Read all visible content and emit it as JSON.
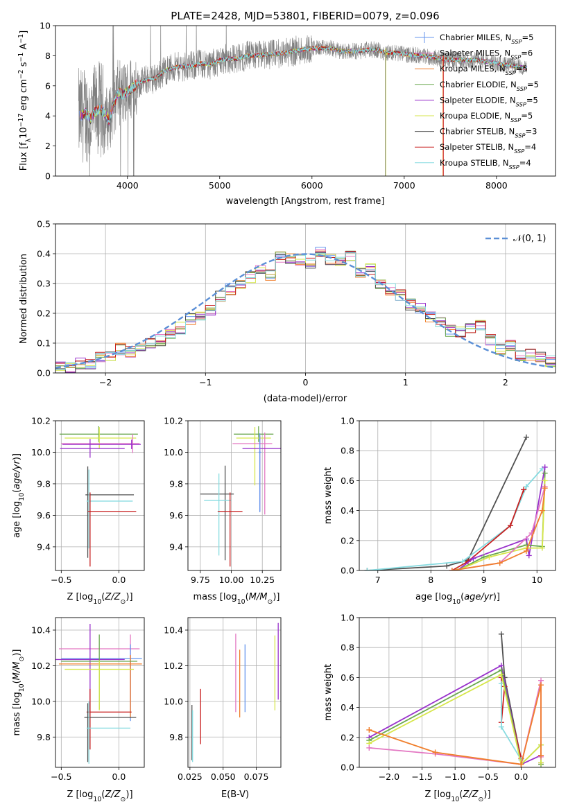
{
  "chart_data": [
    {
      "type": "line",
      "title": "PLATE=2428, MJD=53801, FIBERID=0079, z=0.096",
      "xlabel": "wavelength [Angstrom, rest frame]",
      "ylabel": "Flux [f_λ 10^-17 erg cm^-2 s^-1 A^-1]",
      "xlim": [
        3220,
        8640
      ],
      "ylim": [
        0,
        10
      ],
      "xticks": [
        4000,
        5000,
        6000,
        7000,
        8000
      ],
      "yticks": [
        0,
        2,
        4,
        6,
        8,
        10
      ],
      "grid": false,
      "legend_position": "right",
      "series": [
        {
          "name": "Chabrier MILES, N_SSP=5",
          "color": "#6495ed"
        },
        {
          "name": "Salpeter MILES, N_SSP=6",
          "color": "#e377c2"
        },
        {
          "name": "Kroupa MILES, N_SSP=5",
          "color": "#f07f2c"
        },
        {
          "name": "Chabrier ELODIE, N_SSP=5",
          "color": "#6aa84f"
        },
        {
          "name": "Salpeter ELODIE, N_SSP=5",
          "color": "#9932cc"
        },
        {
          "name": "Kroupa ELODIE, N_SSP=5",
          "color": "#d6e64a"
        },
        {
          "name": "Chabrier STELIB, N_SSP=3",
          "color": "#505050"
        },
        {
          "name": "Salpeter STELIB, N_SSP=4",
          "color": "#c81e1e"
        },
        {
          "name": "Kroupa STELIB, N_SSP=4",
          "color": "#87dbe0"
        }
      ],
      "observed_color": "#808080",
      "model_continuum": {
        "x": [
          3500,
          3550,
          3600,
          3650,
          3700,
          3750,
          3800,
          3850,
          3900,
          3950,
          4000,
          4100,
          4200,
          4300,
          4400,
          4500,
          4600,
          4700,
          4800,
          4900,
          5000,
          5100,
          5200,
          5300,
          5400,
          5500,
          5600,
          5700,
          5800,
          5900,
          6000,
          6100,
          6200,
          6300,
          6400,
          6500,
          6600,
          6700,
          6800,
          6900,
          7000,
          7200,
          7400,
          7600,
          7800,
          8000,
          8200,
          8300
        ],
        "y": [
          4.0,
          4.2,
          3.8,
          4.3,
          4.5,
          4.2,
          3.7,
          4.8,
          5.6,
          5.4,
          5.6,
          6.1,
          6.4,
          6.5,
          7.0,
          7.2,
          7.3,
          7.3,
          7.5,
          7.4,
          7.7,
          7.8,
          7.8,
          8.0,
          8.0,
          8.1,
          8.1,
          8.2,
          8.3,
          8.4,
          8.5,
          8.5,
          8.5,
          8.3,
          8.3,
          8.3,
          8.4,
          8.4,
          8.2,
          8.2,
          8.1,
          8.0,
          7.8,
          7.7,
          7.7,
          7.5,
          7.3,
          7.2
        ]
      }
    },
    {
      "type": "step",
      "xlabel": "(data-model)/error",
      "ylabel": "Normed distribution",
      "xlim": [
        -2.5,
        2.5
      ],
      "ylim": [
        0,
        0.5
      ],
      "xticks": [
        -2,
        -1,
        0,
        1,
        2
      ],
      "yticks": [
        0.0,
        0.1,
        0.2,
        0.3,
        0.4,
        0.5
      ],
      "grid": true,
      "legend_position": "top-right",
      "gaussian_label": "𝒩(0, 1)",
      "gaussian_color": "#5b8fd6",
      "bin_edges": [
        -2.5,
        -2.4,
        -2.3,
        -2.2,
        -2.1,
        -2.0,
        -1.9,
        -1.8,
        -1.7,
        -1.6,
        -1.5,
        -1.4,
        -1.3,
        -1.2,
        -1.1,
        -1.0,
        -0.9,
        -0.8,
        -0.7,
        -0.6,
        -0.5,
        -0.4,
        -0.3,
        -0.2,
        -0.1,
        0.0,
        0.1,
        0.2,
        0.3,
        0.4,
        0.5,
        0.6,
        0.7,
        0.8,
        0.9,
        1.0,
        1.1,
        1.2,
        1.3,
        1.4,
        1.5,
        1.6,
        1.7,
        1.8,
        1.9,
        2.0,
        2.1,
        2.2,
        2.3,
        2.4,
        2.5
      ],
      "base_histogram": [
        0.02,
        0.02,
        0.03,
        0.03,
        0.05,
        0.06,
        0.08,
        0.07,
        0.08,
        0.1,
        0.11,
        0.13,
        0.15,
        0.18,
        0.19,
        0.21,
        0.26,
        0.28,
        0.29,
        0.32,
        0.35,
        0.33,
        0.39,
        0.38,
        0.38,
        0.37,
        0.41,
        0.38,
        0.37,
        0.39,
        0.34,
        0.35,
        0.3,
        0.28,
        0.26,
        0.23,
        0.22,
        0.19,
        0.17,
        0.14,
        0.14,
        0.15,
        0.16,
        0.11,
        0.08,
        0.09,
        0.06,
        0.06,
        0.05,
        0.04
      ]
    },
    {
      "type": "errorbar",
      "xlabel": "Z [log10(Z/Z_⊙)]",
      "ylabel": "age  [log10(age/yr)]",
      "xlim": [
        -0.55,
        0.22
      ],
      "ylim": [
        9.25,
        10.2
      ],
      "xticks": [
        -0.5,
        0.0
      ],
      "yticks": [
        9.4,
        9.6,
        9.8,
        10.0,
        10.2
      ],
      "grid": true,
      "points": [
        {
          "x": -0.175,
          "xerr": [
            0.34,
            0.34
          ],
          "y": 10.115,
          "yerr": [
            0.05,
            0.05
          ],
          "color": "#6aa84f"
        },
        {
          "x": -0.17,
          "xerr": [
            0.3,
            0.32
          ],
          "y": 10.09,
          "yerr": [
            0.07,
            0.07
          ],
          "color": "#d6e64a"
        },
        {
          "x": 0.12,
          "xerr": [
            0.62,
            0.06
          ],
          "y": 10.055,
          "yerr": [
            0.06,
            0.06
          ],
          "color": "#e377c2"
        },
        {
          "x": 0.11,
          "xerr": [
            0.6,
            0.08
          ],
          "y": 10.05,
          "yerr": [
            0.03,
            0.03
          ],
          "color": "#9932cc"
        },
        {
          "x": -0.25,
          "xerr": [
            0.26,
            0.3
          ],
          "y": 10.025,
          "yerr": [
            0.06,
            0.06
          ],
          "color": "#9932cc"
        },
        {
          "x": -0.27,
          "xerr": [
            0.02,
            0.4
          ],
          "y": 9.73,
          "yerr": [
            0.4,
            0.18
          ],
          "color": "#505050"
        },
        {
          "x": -0.26,
          "xerr": [
            0.02,
            0.38
          ],
          "y": 9.69,
          "yerr": [
            0.3,
            0.2
          ],
          "color": "#87dbe0"
        },
        {
          "x": -0.25,
          "xerr": [
            0.02,
            0.4
          ],
          "y": 9.625,
          "yerr": [
            0.35,
            0.12
          ],
          "color": "#c81e1e"
        }
      ]
    },
    {
      "type": "errorbar",
      "xlabel": "mass [log10(M/M_⊙)]",
      "ylabel": "",
      "xlim": [
        9.65,
        10.4
      ],
      "ylim": [
        9.25,
        10.2
      ],
      "xticks": [
        9.75,
        10.0,
        10.25
      ],
      "tick_labels": [
        "9.75",
        "10.00",
        "10.25"
      ],
      "yticks": [
        9.4,
        9.6,
        9.8,
        10.0,
        10.2
      ],
      "grid": true,
      "points": [
        {
          "x": 10.22,
          "xerr": [
            0.2,
            0.12
          ],
          "y": 10.115,
          "yerr": [
            0.05,
            0.05
          ],
          "color": "#6aa84f"
        },
        {
          "x": 10.19,
          "xerr": [
            0.15,
            0.13
          ],
          "y": 10.09,
          "yerr": [
            0.3,
            0.07
          ],
          "color": "#d6e64a"
        },
        {
          "x": 10.27,
          "xerr": [
            0.26,
            0.06
          ],
          "y": 10.055,
          "yerr": [
            0.45,
            0.07
          ],
          "color": "#e377c2"
        },
        {
          "x": 10.23,
          "xerr": [
            0.14,
            0.17
          ],
          "y": 10.025,
          "yerr": [
            0.4,
            0.08
          ],
          "color": "#9932cc"
        },
        {
          "x": 9.95,
          "xerr": [
            0.2,
            0.07
          ],
          "y": 9.735,
          "yerr": [
            0.42,
            0.18
          ],
          "color": "#505050"
        },
        {
          "x": 9.9,
          "xerr": [
            0.12,
            0.1
          ],
          "y": 9.695,
          "yerr": [
            0.35,
            0.17
          ],
          "color": "#87dbe0"
        },
        {
          "x": 9.99,
          "xerr": [
            0.1,
            0.1
          ],
          "y": 9.625,
          "yerr": [
            0.35,
            0.12
          ],
          "color": "#c81e1e"
        },
        {
          "x": 10.23,
          "xerr": [
            0.01,
            0.01
          ],
          "y": 10.0,
          "yerr": [
            0.38,
            0.12
          ],
          "color": "#6495ed"
        }
      ]
    },
    {
      "type": "line",
      "xlabel": "age  [log10(age/yr)]",
      "ylabel": "mass weight",
      "xlim": [
        6.65,
        10.35
      ],
      "ylim": [
        0,
        1
      ],
      "xticks": [
        7,
        8,
        9,
        10
      ],
      "yticks": [
        0.0,
        0.2,
        0.4,
        0.6,
        0.8,
        1.0
      ],
      "grid": true,
      "series": [
        {
          "x": [
            6.8,
            8.3,
            8.7,
            9.8
          ],
          "y": [
            0.0,
            0.03,
            0.07,
            0.89
          ],
          "color": "#505050"
        },
        {
          "x": [
            6.8,
            8.6,
            9.5,
            9.8,
            10.1
          ],
          "y": [
            0.0,
            0.06,
            0.3,
            0.56,
            0.68
          ],
          "color": "#87dbe0"
        },
        {
          "x": [
            8.4,
            8.7,
            9.5,
            9.75
          ],
          "y": [
            0.0,
            0.06,
            0.3,
            0.54
          ],
          "color": "#c81e1e"
        },
        {
          "x": [
            8.5,
            8.8,
            9.8,
            9.85,
            10.15
          ],
          "y": [
            0.0,
            0.08,
            0.21,
            0.1,
            0.69
          ],
          "color": "#9932cc"
        },
        {
          "x": [
            8.5,
            9.0,
            9.8,
            10.1,
            10.15
          ],
          "y": [
            0.0,
            0.09,
            0.17,
            0.16,
            0.65
          ],
          "color": "#6aa84f"
        },
        {
          "x": [
            8.5,
            9.1,
            9.8,
            10.1,
            10.15
          ],
          "y": [
            0.0,
            0.09,
            0.15,
            0.15,
            0.6
          ],
          "color": "#d6e64a"
        },
        {
          "x": [
            8.4,
            9.3,
            9.9,
            10.15
          ],
          "y": [
            0.0,
            0.05,
            0.25,
            0.56
          ],
          "color": "#e377c2"
        },
        {
          "x": [
            8.4,
            9.3,
            9.8,
            10.1,
            10.15
          ],
          "y": [
            0.0,
            0.05,
            0.13,
            0.4,
            0.55
          ],
          "color": "#f07f2c"
        }
      ]
    },
    {
      "type": "errorbar",
      "xlabel": "Z [log10(Z/Z_⊙)]",
      "ylabel": "mass [log10(M/M_⊙)]",
      "xlim": [
        -0.55,
        0.22
      ],
      "ylim": [
        9.63,
        10.47
      ],
      "xticks": [
        -0.5,
        0.0
      ],
      "yticks": [
        9.8,
        10.0,
        10.2,
        10.4
      ],
      "grid": true,
      "points": [
        {
          "x": 0.1,
          "xerr": [
            0.62,
            0.08
          ],
          "y": 10.295,
          "yerr": [
            0.35,
            0.08
          ],
          "color": "#e377c2"
        },
        {
          "x": 0.1,
          "xerr": [
            0.6,
            0.1
          ],
          "y": 10.24,
          "yerr": [
            0.35,
            0.08
          ],
          "color": "#6495ed"
        },
        {
          "x": -0.25,
          "xerr": [
            0.3,
            0.3
          ],
          "y": 10.235,
          "yerr": [
            0.3,
            0.2
          ],
          "color": "#9932cc"
        },
        {
          "x": 0.1,
          "xerr": [
            0.62,
            0.1
          ],
          "y": 10.21,
          "yerr": [
            0.3,
            0.05
          ],
          "color": "#f07f2c"
        },
        {
          "x": -0.17,
          "xerr": [
            0.33,
            0.33
          ],
          "y": 10.225,
          "yerr": [
            0.27,
            0.15
          ],
          "color": "#6aa84f"
        },
        {
          "x": -0.17,
          "xerr": [
            0.3,
            0.3
          ],
          "y": 10.18,
          "yerr": [
            0.23,
            0.05
          ],
          "color": "#d6e64a"
        },
        {
          "x": -0.25,
          "xerr": [
            0.03,
            0.36
          ],
          "y": 9.94,
          "yerr": [
            0.21,
            0.13
          ],
          "color": "#c81e1e"
        },
        {
          "x": -0.27,
          "xerr": [
            0.03,
            0.42
          ],
          "y": 9.91,
          "yerr": [
            0.25,
            0.08
          ],
          "color": "#505050"
        },
        {
          "x": -0.26,
          "xerr": [
            0.02,
            0.36
          ],
          "y": 9.85,
          "yerr": [
            0.2,
            0.15
          ],
          "color": "#87dbe0"
        }
      ]
    },
    {
      "type": "errorbar",
      "xlabel": "E(B-V)",
      "ylabel": "",
      "xlim": [
        0.0235,
        0.0935
      ],
      "ylim": [
        9.63,
        10.47
      ],
      "xticks": [
        0.025,
        0.05,
        0.075
      ],
      "tick_labels": [
        "0.025",
        "0.050",
        "0.075"
      ],
      "yticks": [
        9.8,
        10.0,
        10.2,
        10.4
      ],
      "grid": true,
      "points": [
        {
          "x": 0.0265,
          "y": 9.83,
          "yerr": [
            0.16,
            0.15
          ],
          "color": "#505050"
        },
        {
          "x": 0.027,
          "y": 9.82,
          "yerr": [
            0.16,
            0.13
          ],
          "color": "#87dbe0"
        },
        {
          "x": 0.033,
          "y": 9.91,
          "yerr": [
            0.15,
            0.16
          ],
          "color": "#c81e1e"
        },
        {
          "x": 0.0595,
          "y": 10.19,
          "yerr": [
            0.25,
            0.19
          ],
          "color": "#e377c2"
        },
        {
          "x": 0.0625,
          "y": 10.1,
          "yerr": [
            0.19,
            0.19
          ],
          "color": "#f07f2c"
        },
        {
          "x": 0.0665,
          "y": 10.12,
          "yerr": [
            0.18,
            0.2
          ],
          "color": "#6495ed"
        },
        {
          "x": 0.089,
          "y": 10.16,
          "yerr": [
            0.21,
            0.21
          ],
          "color": "#d6e64a"
        },
        {
          "x": 0.0915,
          "y": 10.22,
          "yerr": [
            0.21,
            0.22
          ],
          "color": "#9932cc"
        }
      ]
    },
    {
      "type": "line",
      "xlabel": "Z [log10(Z/Z_⊙)]",
      "ylabel": "mass weight",
      "xlim": [
        -2.45,
        0.52
      ],
      "ylim": [
        0,
        1
      ],
      "xticks": [
        -2.0,
        -1.5,
        -1.0,
        -0.5,
        0.0
      ],
      "yticks": [
        0.0,
        0.2,
        0.4,
        0.6,
        0.8,
        1.0
      ],
      "grid": true,
      "series": [
        {
          "x": [
            -0.3,
            -0.25,
            0.0,
            0.0
          ],
          "y": [
            0.89,
            0.6,
            0.05,
            0.02
          ],
          "color": "#505050"
        },
        {
          "x": [
            -0.3,
            -0.3,
            -0.25,
            0.0,
            0.0
          ],
          "y": [
            0.6,
            0.3,
            0.54,
            0.06,
            0.02
          ],
          "color": "#c81e1e"
        },
        {
          "x": [
            -0.3,
            -0.3,
            0.0
          ],
          "y": [
            0.56,
            0.27,
            0.05
          ],
          "color": "#87dbe0"
        },
        {
          "x": [
            -2.3,
            -0.3,
            0.0,
            0.3,
            0.3
          ],
          "y": [
            0.2,
            0.68,
            0.02,
            0.08,
            0.03
          ],
          "color": "#9932cc"
        },
        {
          "x": [
            -2.3,
            -0.3,
            0.0,
            0.3,
            0.3
          ],
          "y": [
            0.18,
            0.65,
            0.02,
            0.15,
            0.02
          ],
          "color": "#6aa84f"
        },
        {
          "x": [
            -2.3,
            -0.3,
            0.0,
            0.3,
            0.3
          ],
          "y": [
            0.16,
            0.62,
            0.02,
            0.15,
            0.03
          ],
          "color": "#d6e64a"
        },
        {
          "x": [
            -2.3,
            -1.3,
            0.0,
            0.3,
            0.3
          ],
          "y": [
            0.13,
            0.09,
            0.02,
            0.58,
            0.07
          ],
          "color": "#e377c2"
        },
        {
          "x": [
            -2.3,
            -1.3,
            0.0,
            0.3,
            0.3
          ],
          "y": [
            0.25,
            0.1,
            0.02,
            0.55,
            0.08
          ],
          "color": "#f07f2c"
        }
      ]
    }
  ]
}
